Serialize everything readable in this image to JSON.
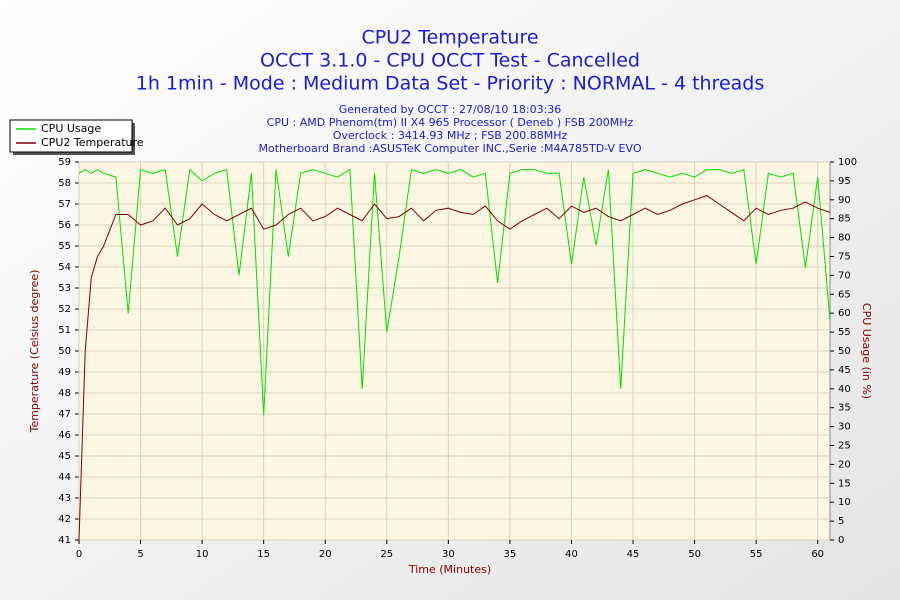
{
  "chart_data": {
    "type": "line",
    "title": "CPU2 Temperature",
    "subtitle": [
      "OCCT 3.1.0 - CPU OCCT Test - Cancelled",
      "1h 1min - Mode : Medium Data Set - Priority : NORMAL - 4 threads"
    ],
    "info": [
      "Generated by OCCT : 27/08/10 18:03:36",
      "CPU : AMD Phenom(tm) II X4 965 Processor ( Deneb ) FSB 200MHz",
      "Overclock : 3414.93 MHz ; FSB 200.88MHz",
      "Motherboard Brand :ASUSTeK Computer INC.,Serie :M4A785TD-V EVO"
    ],
    "xlabel": "Time (Minutes)",
    "ylabel": "Temperature (Celsius degree)",
    "y2label": "CPU Usage (in %)",
    "legend": "top-left",
    "grid": true,
    "xlim": [
      0,
      61
    ],
    "ylim": [
      41,
      59
    ],
    "y2lim": [
      0,
      100
    ],
    "xticks": [
      0,
      5,
      10,
      15,
      20,
      25,
      30,
      35,
      40,
      45,
      50,
      55,
      60
    ],
    "yticks": [
      41,
      42,
      43,
      44,
      45,
      46,
      47,
      48,
      49,
      50,
      51,
      52,
      53,
      54,
      55,
      56,
      57,
      58,
      59
    ],
    "y2ticks": [
      0,
      5,
      10,
      15,
      20,
      25,
      30,
      35,
      40,
      45,
      50,
      55,
      60,
      65,
      70,
      75,
      80,
      85,
      90,
      95,
      100
    ],
    "x": [
      0,
      0.5,
      1,
      1.5,
      2,
      3,
      4,
      5,
      6,
      7,
      8,
      9,
      10,
      11,
      12,
      13,
      14,
      15,
      16,
      17,
      18,
      19,
      20,
      21,
      22,
      23,
      24,
      25,
      26,
      27,
      28,
      29,
      30,
      31,
      32,
      33,
      34,
      35,
      36,
      37,
      38,
      39,
      40,
      41,
      42,
      43,
      44,
      45,
      46,
      47,
      48,
      49,
      50,
      51,
      52,
      53,
      54,
      55,
      56,
      57,
      58,
      59,
      60,
      61
    ],
    "series": [
      {
        "name": "CPU Usage",
        "color": "#00e000",
        "axis": "y2",
        "values": [
          97,
          98,
          97,
          98,
          97,
          96,
          60,
          98,
          97,
          98,
          75,
          98,
          95,
          97,
          98,
          70,
          97,
          33,
          98,
          75,
          97,
          98,
          97,
          96,
          98,
          40,
          97,
          55,
          75,
          98,
          97,
          98,
          97,
          98,
          96,
          97,
          68,
          97,
          98,
          98,
          97,
          97,
          73,
          96,
          78,
          98,
          40,
          97,
          98,
          97,
          96,
          97,
          96,
          98,
          98,
          97,
          98,
          73,
          97,
          96,
          97,
          72,
          96,
          58
        ]
      },
      {
        "name": "CPU2 Temperature",
        "color": "#800000",
        "values": [
          41,
          50,
          53.5,
          54.5,
          55,
          56.5,
          56.5,
          56,
          56.2,
          56.8,
          56,
          56.3,
          57,
          56.5,
          56.2,
          56.5,
          56.8,
          55.8,
          56,
          56.5,
          56.8,
          56.2,
          56.4,
          56.8,
          56.5,
          56.2,
          57,
          56.3,
          56.4,
          56.8,
          56.2,
          56.7,
          56.8,
          56.6,
          56.5,
          56.9,
          56.2,
          55.8,
          56.2,
          56.5,
          56.8,
          56.3,
          56.9,
          56.6,
          56.8,
          56.4,
          56.2,
          56.5,
          56.8,
          56.5,
          56.7,
          57,
          57.2,
          57.4,
          57,
          56.6,
          56.2,
          56.8,
          56.5,
          56.7,
          56.8,
          57.1,
          56.8,
          56.6
        ]
      }
    ]
  }
}
